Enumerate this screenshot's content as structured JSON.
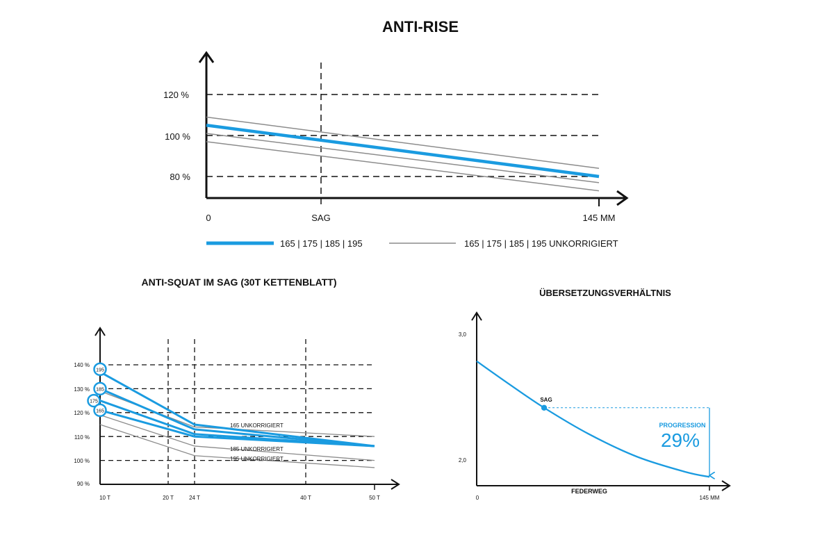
{
  "colors": {
    "accent": "#1a9be0",
    "grey": "#8c8c8c",
    "ink": "#111111"
  },
  "chart_data": [
    {
      "type": "line",
      "title": "ANTI-RISE",
      "x_ticks": [
        "0",
        "SAG",
        "145 MM"
      ],
      "y_ticks": [
        "120 %",
        "100 %",
        "80 %"
      ],
      "y_tick_values": [
        120,
        100,
        80
      ],
      "x_range_mm": [
        0,
        145
      ],
      "sag_mm": 42,
      "ylim": [
        70,
        145
      ],
      "grid": true,
      "series": [
        {
          "name": "165 | 175 | 185 | 195",
          "style": "corrected",
          "x": [
            0,
            145
          ],
          "y": [
            105,
            80
          ]
        },
        {
          "name": "165 | 175 | 185 | 195 UNKORRIGIERT",
          "style": "uncorrected",
          "x": [
            0,
            145
          ],
          "y": [
            109,
            84
          ]
        },
        {
          "name": "",
          "style": "uncorrected",
          "x": [
            0,
            145
          ],
          "y": [
            101,
            77
          ]
        },
        {
          "name": "",
          "style": "uncorrected",
          "x": [
            0,
            145
          ],
          "y": [
            97,
            73
          ]
        }
      ],
      "legend": [
        {
          "label": "165 | 175 | 185 | 195",
          "style": "corrected"
        },
        {
          "label": "165 | 175 | 185 | 195 UNKORRIGIERT",
          "style": "uncorrected"
        }
      ],
      "legend_position": "bottom"
    },
    {
      "type": "line",
      "title": "ANTI-SQUAT IM SAG (30T KETTENBLATT)",
      "categories": [
        "10 T",
        "20 T",
        "24 T",
        "40 T",
        "50 T"
      ],
      "x_values": [
        10,
        20,
        24,
        40,
        50
      ],
      "y_ticks": [
        "140 %",
        "130 %",
        "120 %",
        "110 %",
        "100 %",
        "90 %"
      ],
      "y_tick_values": [
        140,
        130,
        120,
        110,
        100,
        90
      ],
      "ylim": [
        90,
        145
      ],
      "grid": true,
      "series": [
        {
          "name": "195",
          "style": "corrected",
          "x": [
            10,
            24,
            50
          ],
          "y": [
            137,
            115,
            106
          ]
        },
        {
          "name": "185",
          "style": "corrected",
          "x": [
            10,
            24,
            50
          ],
          "y": [
            130,
            113,
            106
          ]
        },
        {
          "name": "175",
          "style": "corrected",
          "x": [
            10,
            24,
            50
          ],
          "y": [
            125,
            111,
            106
          ]
        },
        {
          "name": "165",
          "style": "corrected",
          "x": [
            10,
            24,
            50
          ],
          "y": [
            121,
            110,
            106
          ]
        },
        {
          "name": "165 UNKORRIGIERT",
          "style": "uncorrected",
          "x": [
            10,
            24,
            50
          ],
          "y": [
            129,
            114,
            110
          ]
        },
        {
          "name": "185 UNKORRIGIERT",
          "style": "uncorrected",
          "x": [
            10,
            24,
            50
          ],
          "y": [
            119,
            106,
            100
          ]
        },
        {
          "name": "195 UNKORRIGIERT",
          "style": "uncorrected",
          "x": [
            10,
            24,
            50
          ],
          "y": [
            115,
            102,
            97
          ]
        }
      ],
      "annotations": [
        "165 UNKORRIGIERT",
        "185 UNKORRIGIERT",
        "195 UNKORRIGIERT"
      ]
    },
    {
      "type": "line",
      "title": "ÜBERSETZUNGSVERHÄLTNIS",
      "xlabel": "FEDERWEG",
      "x_ticks": [
        "0",
        "145 MM"
      ],
      "y_ticks": [
        "3,0",
        "2,0"
      ],
      "y_tick_values": [
        3.0,
        2.0
      ],
      "x_range_mm": [
        0,
        145
      ],
      "ylim": [
        1.8,
        3.15
      ],
      "series": [
        {
          "name": "",
          "x": [
            0,
            20,
            42,
            70,
            100,
            130,
            145
          ],
          "y": [
            2.78,
            2.6,
            2.41,
            2.2,
            2.02,
            1.9,
            1.86
          ]
        }
      ],
      "sag_point": {
        "label": "SAG",
        "x": 42,
        "y": 2.41
      },
      "annotation": {
        "label": "PROGRESSION",
        "value": "29%"
      }
    }
  ]
}
